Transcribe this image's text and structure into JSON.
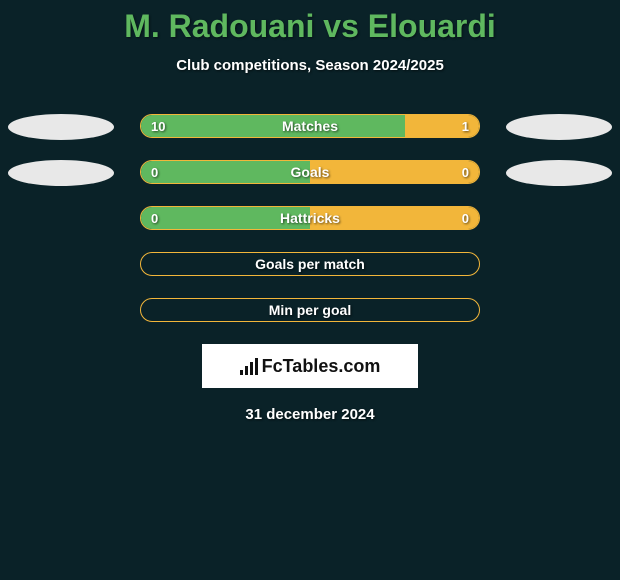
{
  "title": "M. Radouani vs Elouardi",
  "subtitle": "Club competitions, Season 2024/2025",
  "date": "31 december 2024",
  "logo_text": "FcTables.com",
  "colors": {
    "background": "#0a2228",
    "title": "#5fb85f",
    "left_fill": "#5fb85f",
    "right_fill": "#f2b63a",
    "oval_white": "#e8e8e8",
    "text_white": "#ffffff"
  },
  "rows": [
    {
      "label": "Matches",
      "left_value": "10",
      "right_value": "1",
      "left_pct": 78,
      "right_pct": 22,
      "show_ovals": true,
      "oval_color": "#e8e8e8",
      "border_color": "#f2b63a",
      "left_fill": "#5fb85f",
      "right_fill": "#f2b63a"
    },
    {
      "label": "Goals",
      "left_value": "0",
      "right_value": "0",
      "left_pct": 50,
      "right_pct": 50,
      "show_ovals": true,
      "oval_color": "#e8e8e8",
      "border_color": "#f2b63a",
      "left_fill": "#5fb85f",
      "right_fill": "#f2b63a"
    },
    {
      "label": "Hattricks",
      "left_value": "0",
      "right_value": "0",
      "left_pct": 50,
      "right_pct": 50,
      "show_ovals": false,
      "border_color": "#f2b63a",
      "left_fill": "#5fb85f",
      "right_fill": "#f2b63a"
    },
    {
      "label": "Goals per match",
      "left_value": "",
      "right_value": "",
      "left_pct": 0,
      "right_pct": 0,
      "show_ovals": false,
      "border_color": "#f2b63a",
      "left_fill": "transparent",
      "right_fill": "transparent"
    },
    {
      "label": "Min per goal",
      "left_value": "",
      "right_value": "",
      "left_pct": 0,
      "right_pct": 0,
      "show_ovals": false,
      "border_color": "#f2b63a",
      "left_fill": "transparent",
      "right_fill": "transparent"
    }
  ]
}
